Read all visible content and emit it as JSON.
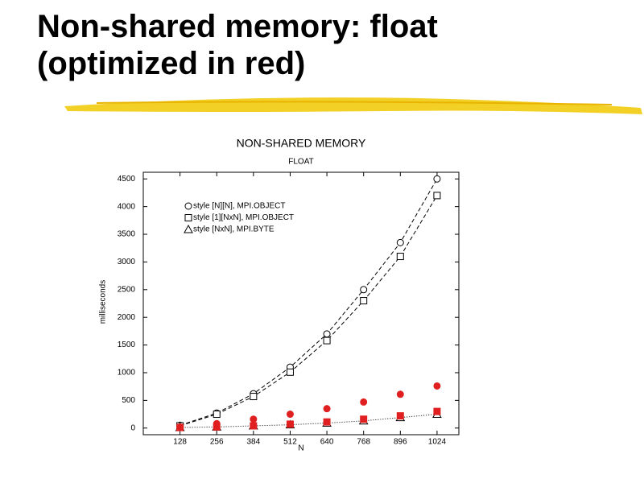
{
  "slide_title": [
    "Non-shared memory: float",
    "(optimized in red)"
  ],
  "chart_data": {
    "type": "line",
    "title": "NON-SHARED MEMORY",
    "subtitle": "FLOAT",
    "x_label": "N",
    "y_label": "milliseconds",
    "x": [
      128,
      256,
      384,
      512,
      640,
      768,
      896,
      1024
    ],
    "xlim": [
      0,
      1100
    ],
    "xticks": [
      128,
      256,
      384,
      512,
      640,
      768,
      896,
      1024
    ],
    "ylim": [
      -120,
      4620
    ],
    "yticks": [
      0,
      500,
      1000,
      1500,
      2000,
      2500,
      3000,
      3500,
      4000,
      4500
    ],
    "legend": "upper left",
    "series": [
      {
        "name": "style [N][N], MPI.OBJECT",
        "color": "#000000",
        "marker": "circle",
        "line": "dashed",
        "values": [
          50,
          270,
          620,
          1100,
          1700,
          2500,
          3350,
          4500
        ]
      },
      {
        "name": "style [1][NxN], MPI.OBJECT",
        "color": "#000000",
        "marker": "square",
        "line": "dashed",
        "values": [
          40,
          250,
          570,
          1010,
          1580,
          2300,
          3100,
          4200
        ]
      },
      {
        "name": "style [NxN], MPI.BYTE",
        "color": "#000000",
        "marker": "triangle",
        "line": "dotted",
        "values": [
          10,
          20,
          40,
          60,
          90,
          130,
          190,
          250
        ]
      },
      {
        "color": "#e02020",
        "marker": "filled-circle",
        "line": "none",
        "values": [
          20,
          80,
          160,
          250,
          350,
          470,
          610,
          760
        ]
      },
      {
        "color": "#e02020",
        "marker": "filled-square",
        "line": "none",
        "values": [
          10,
          20,
          40,
          70,
          110,
          160,
          220,
          300
        ]
      }
    ]
  }
}
